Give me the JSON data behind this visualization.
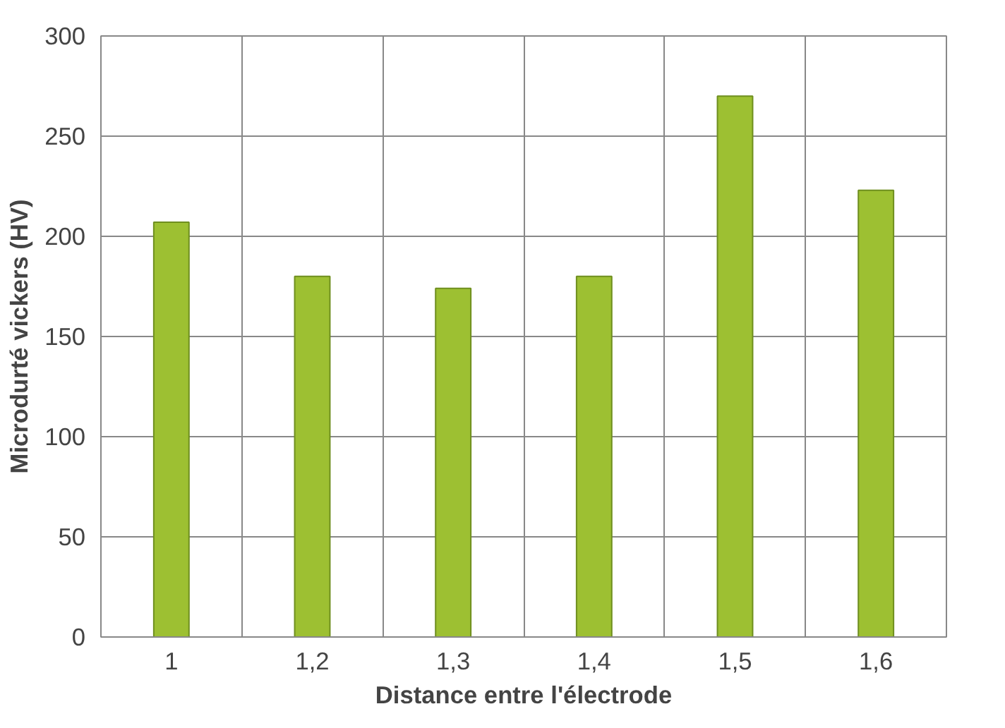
{
  "chart_data": {
    "type": "bar",
    "xlabel": "Distance entre l'électrode",
    "ylabel": "Microdurté vickers (HV)",
    "categories": [
      "1",
      "1,2",
      "1,3",
      "1,4",
      "1,5",
      "1,6"
    ],
    "values": [
      207,
      180,
      174,
      180,
      270,
      223
    ],
    "color": "#9dc032",
    "ylim": [
      0,
      300
    ],
    "yticks": [
      0,
      50,
      100,
      150,
      200,
      250,
      300
    ],
    "grid": true
  }
}
